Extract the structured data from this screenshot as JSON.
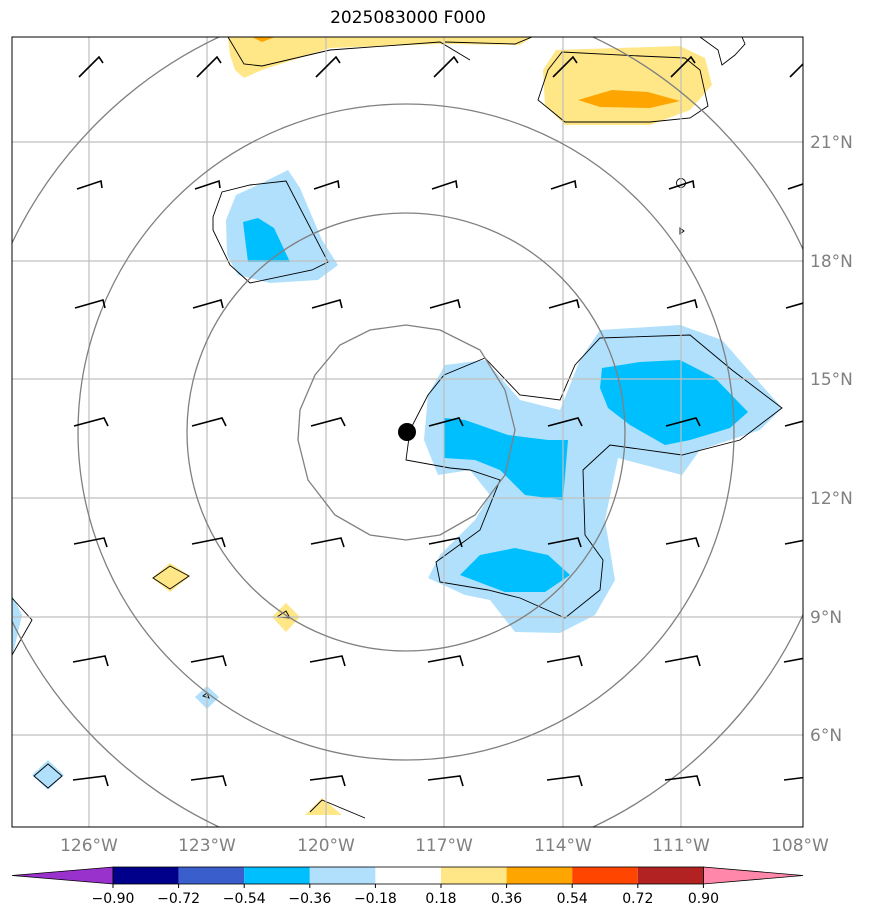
{
  "title": "2025083000 F000",
  "lat_labels": [
    "21°N",
    "18°N",
    "15°N",
    "12°N",
    "9°N",
    "6°N"
  ],
  "lon_labels": [
    "126°W",
    "123°W",
    "120°W",
    "117°W",
    "114°W",
    "111°W",
    "108°W"
  ],
  "colorbar": {
    "ticks": [
      "−0.90",
      "−0.72",
      "−0.54",
      "−0.36",
      "−0.18",
      "0.18",
      "0.36",
      "0.54",
      "0.72",
      "0.90"
    ],
    "colors": [
      "#9932cc",
      "#00008b",
      "#3a5fcd",
      "#00bfff",
      "#b0e0fc",
      "#ffffff",
      "#ffe787",
      "#ffa500",
      "#ff4500",
      "#b22222",
      "#ff88aa"
    ]
  },
  "storm_center": {
    "lon": -118.0,
    "lat": 13.7
  },
  "colors": {
    "grid": "#bfbfbf",
    "ring": "#808080",
    "coast": "#000000"
  }
}
